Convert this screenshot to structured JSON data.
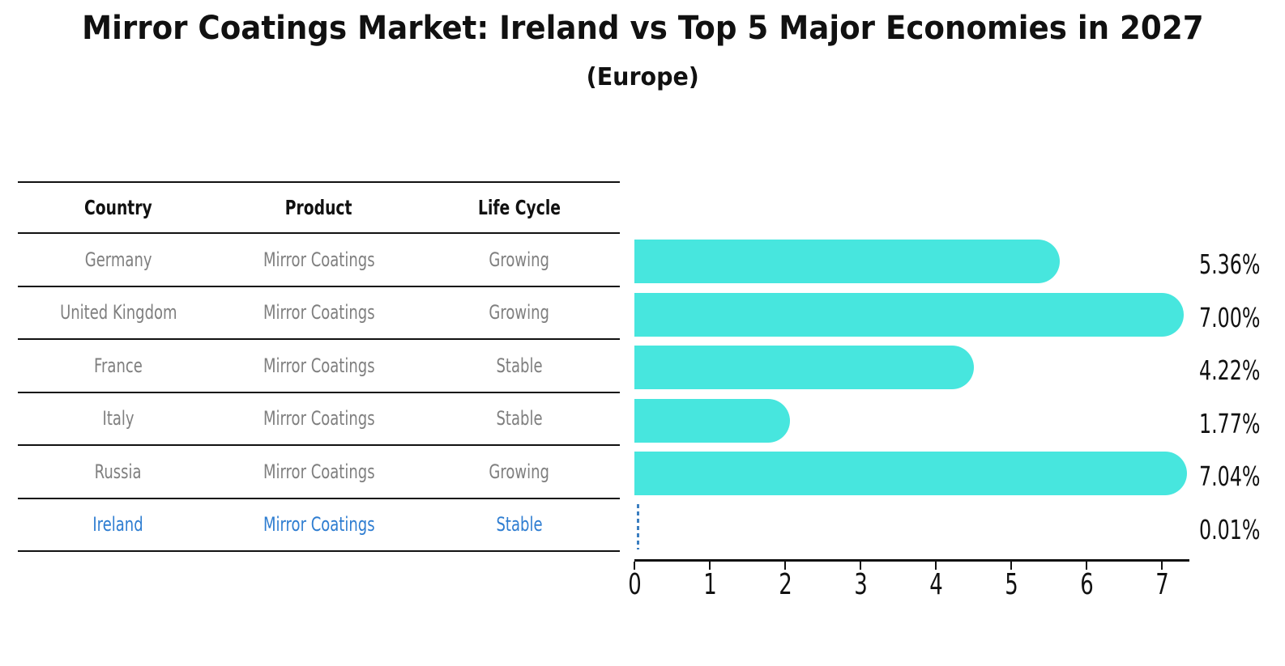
{
  "header": {
    "title": "Mirror Coatings Market: Ireland vs Top 5 Major Economies in 2027",
    "subtitle": "(Europe)"
  },
  "table": {
    "columns": [
      "Country",
      "Product",
      "Life Cycle"
    ],
    "rows": [
      {
        "country": "Germany",
        "product": "Mirror Coatings",
        "life_cycle": "Growing",
        "highlighted": false
      },
      {
        "country": "United Kingdom",
        "product": "Mirror Coatings",
        "life_cycle": "Growing",
        "highlighted": false
      },
      {
        "country": "France",
        "product": "Mirror Coatings",
        "life_cycle": "Stable",
        "highlighted": false
      },
      {
        "country": "Italy",
        "product": "Mirror Coatings",
        "life_cycle": "Stable",
        "highlighted": false
      },
      {
        "country": "Russia",
        "product": "Mirror Coatings",
        "life_cycle": "Growing",
        "highlighted": false
      },
      {
        "country": "Ireland",
        "product": "Mirror Coatings",
        "life_cycle": "Stable",
        "highlighted": true
      }
    ]
  },
  "chart_data": {
    "type": "bar",
    "orientation": "horizontal",
    "title": "Mirror Coatings Market: Ireland vs Top 5 Major Economies in 2027",
    "subtitle": "(Europe)",
    "categories": [
      "Germany",
      "United Kingdom",
      "France",
      "Italy",
      "Russia",
      "Ireland"
    ],
    "values": [
      5.36,
      7.0,
      4.22,
      1.77,
      7.04,
      0.01
    ],
    "value_labels": [
      "5.36%",
      "7.00%",
      "4.22%",
      "1.77%",
      "7.04%",
      "0.01%"
    ],
    "x_ticks": [
      0,
      1,
      2,
      3,
      4,
      5,
      6,
      7
    ],
    "xlim": [
      0,
      7.37
    ],
    "xlabel": "",
    "ylabel": "",
    "grid": false,
    "legend": false,
    "bar_color": "#47e6de",
    "highlight_category": "Ireland",
    "highlight_marker_style": "dashed-line"
  },
  "colors": {
    "bar_turquoise": "#47e6de",
    "highlight_blue": "#2e7dd1",
    "marker_blue": "#3b7ec0",
    "row_text_gray": "#7f7f7f",
    "line_black": "#111111",
    "background": "#ffffff"
  }
}
